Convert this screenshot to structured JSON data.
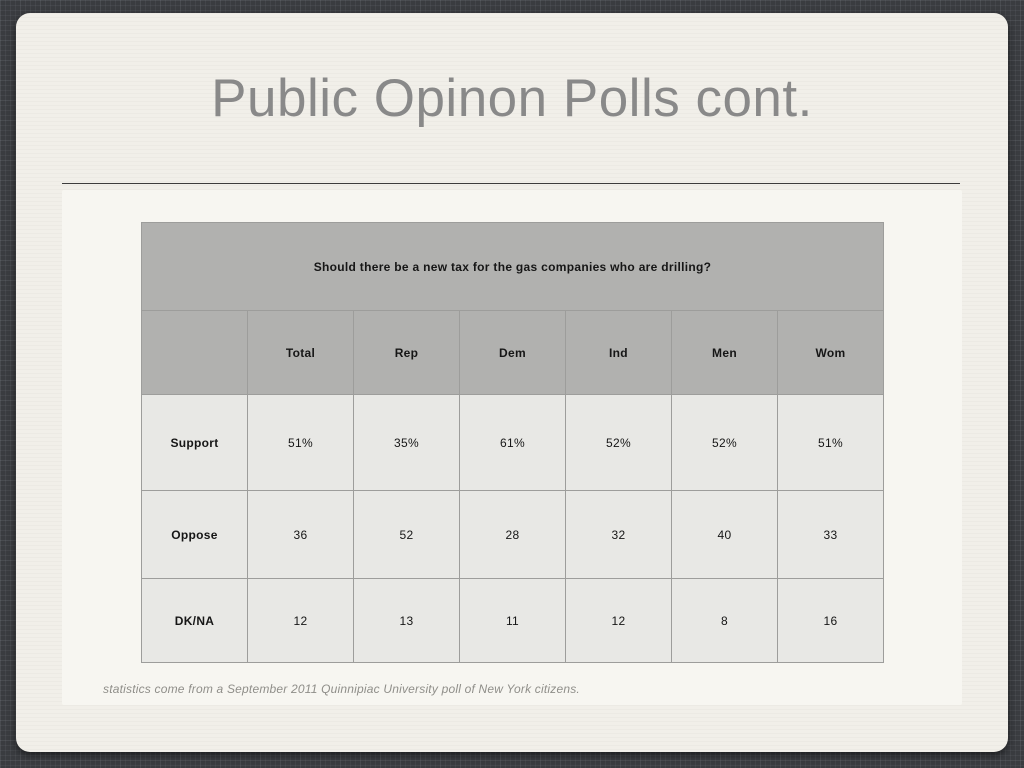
{
  "slide": {
    "title": "Public Opinon Polls cont.",
    "caption": "statistics come from a September 2011 Quinnipiac University poll of New York citizens."
  },
  "table": {
    "question": "Should there be a new tax for the gas companies who are drilling?",
    "columns": [
      "",
      "Total",
      "Rep",
      "Dem",
      "Ind",
      "Men",
      "Wom"
    ],
    "rows": [
      {
        "label": "Support",
        "values": [
          "51%",
          "35%",
          "61%",
          "52%",
          "52%",
          "51%"
        ]
      },
      {
        "label": "Oppose",
        "values": [
          "36",
          "52",
          "28",
          "32",
          "40",
          "33"
        ]
      },
      {
        "label": "DK/NA",
        "values": [
          "12",
          "13",
          "11",
          "12",
          "8",
          "16"
        ]
      }
    ]
  },
  "colors": {
    "desktop_background": "#3a3c40",
    "slide_background": "#f1efe9",
    "panel_background": "#f7f6f1",
    "table_header_bg": "#b1b1af",
    "table_cell_bg": "#e8e8e5",
    "table_border": "#9d9d9b",
    "title_text": "#898989",
    "caption_text": "#8f8e89",
    "table_text": "#161616"
  }
}
